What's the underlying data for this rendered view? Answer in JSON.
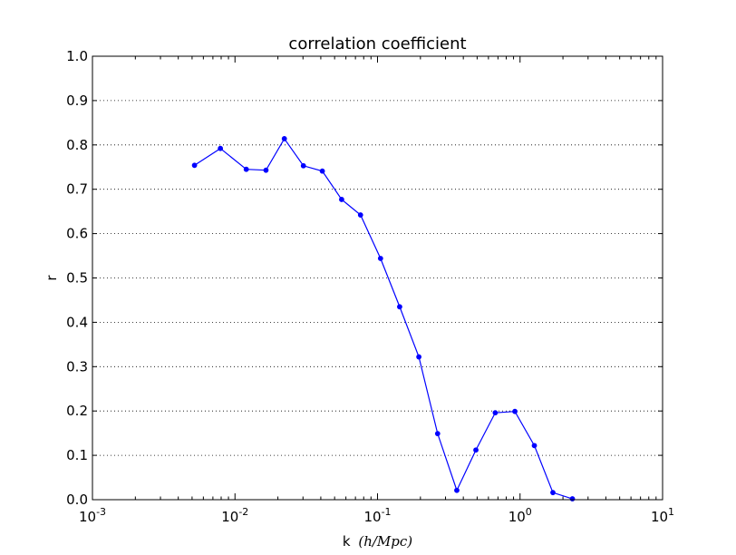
{
  "chart_data": {
    "type": "line",
    "title": "correlation coefficient",
    "xlabel": "k",
    "xlabel_unit": "(h/Mpc)",
    "ylabel": "r",
    "xscale": "log",
    "xlim": [
      0.001,
      10
    ],
    "ylim": [
      0,
      1.0
    ],
    "grid": "horizontal-dotted",
    "x_ticks": [
      {
        "value": 0.001,
        "base": "10",
        "exp": "-3"
      },
      {
        "value": 0.01,
        "base": "10",
        "exp": "-2"
      },
      {
        "value": 0.1,
        "base": "10",
        "exp": "-1"
      },
      {
        "value": 1,
        "base": "10",
        "exp": "0"
      },
      {
        "value": 10,
        "base": "10",
        "exp": "1"
      }
    ],
    "y_ticks": [
      "0.0",
      "0.1",
      "0.2",
      "0.3",
      "0.4",
      "0.5",
      "0.6",
      "0.7",
      "0.8",
      "0.9",
      "1.0"
    ],
    "series": [
      {
        "color": "#0000ff",
        "marker": "circle",
        "x": [
          0.0052,
          0.0079,
          0.012,
          0.0165,
          0.0222,
          0.0302,
          0.041,
          0.056,
          0.076,
          0.105,
          0.143,
          0.195,
          0.264,
          0.36,
          0.49,
          0.67,
          0.92,
          1.26,
          1.7,
          2.33
        ],
        "y": [
          0.754,
          0.792,
          0.745,
          0.743,
          0.814,
          0.753,
          0.741,
          0.677,
          0.642,
          0.544,
          0.435,
          0.322,
          0.149,
          0.021,
          0.112,
          0.196,
          0.199,
          0.122,
          0.016,
          0.002
        ]
      }
    ]
  }
}
